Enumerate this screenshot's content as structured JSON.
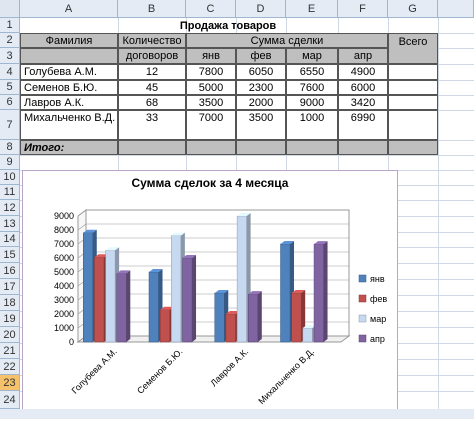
{
  "columns": [
    "A",
    "B",
    "C",
    "D",
    "E",
    "F",
    "G"
  ],
  "rows": [
    "1",
    "2",
    "3",
    "4",
    "5",
    "6",
    "7",
    "8",
    "9",
    "10",
    "11",
    "12",
    "13",
    "14",
    "15",
    "16",
    "17",
    "18",
    "19",
    "20",
    "21",
    "22",
    "23",
    "24"
  ],
  "title": "Продажа товаров",
  "header": {
    "surname": "Фамилия",
    "contracts_line1": "Количество",
    "contracts_line2": "договоров",
    "sum": "Сумма сделки",
    "total": "Всего",
    "months": [
      "янв",
      "фев",
      "мар",
      "апр"
    ]
  },
  "table": [
    {
      "name": "Голубева А.М.",
      "contracts": "12",
      "values": [
        "7800",
        "6050",
        "6550",
        "4900"
      ]
    },
    {
      "name": "Семенов Б.Ю.",
      "contracts": "45",
      "values": [
        "5000",
        "2300",
        "7600",
        "6000"
      ]
    },
    {
      "name": "Лавров А.К.",
      "contracts": "68",
      "values": [
        "3500",
        "2000",
        "9000",
        "3420"
      ]
    },
    {
      "name": "Михальченко В.Д.",
      "contracts": "33",
      "values": [
        "7000",
        "3500",
        "1000",
        "6990"
      ]
    }
  ],
  "itogo": "Итого:",
  "chart_data": {
    "type": "bar",
    "title": "Сумма сделок за 4 месяца",
    "categories": [
      "Голубева А.М.",
      "Семенов Б.Ю.",
      "Лавров А.К.",
      "Михальченко В.Д."
    ],
    "series": [
      {
        "name": "янв",
        "values": [
          7800,
          5000,
          3500,
          7000
        ],
        "color": "#4f81bd"
      },
      {
        "name": "фев",
        "values": [
          6050,
          2300,
          2000,
          3500
        ],
        "color": "#c0504d"
      },
      {
        "name": "мар",
        "values": [
          6550,
          7600,
          9000,
          1000
        ],
        "color": "#c6d9f1"
      },
      {
        "name": "апр",
        "values": [
          4900,
          6000,
          3420,
          6990
        ],
        "color": "#8064a2"
      }
    ],
    "ylim": [
      0,
      9000
    ],
    "yticks": [
      "0",
      "1000",
      "2000",
      "3000",
      "4000",
      "5000",
      "6000",
      "7000",
      "8000",
      "9000"
    ],
    "legend": "right"
  }
}
